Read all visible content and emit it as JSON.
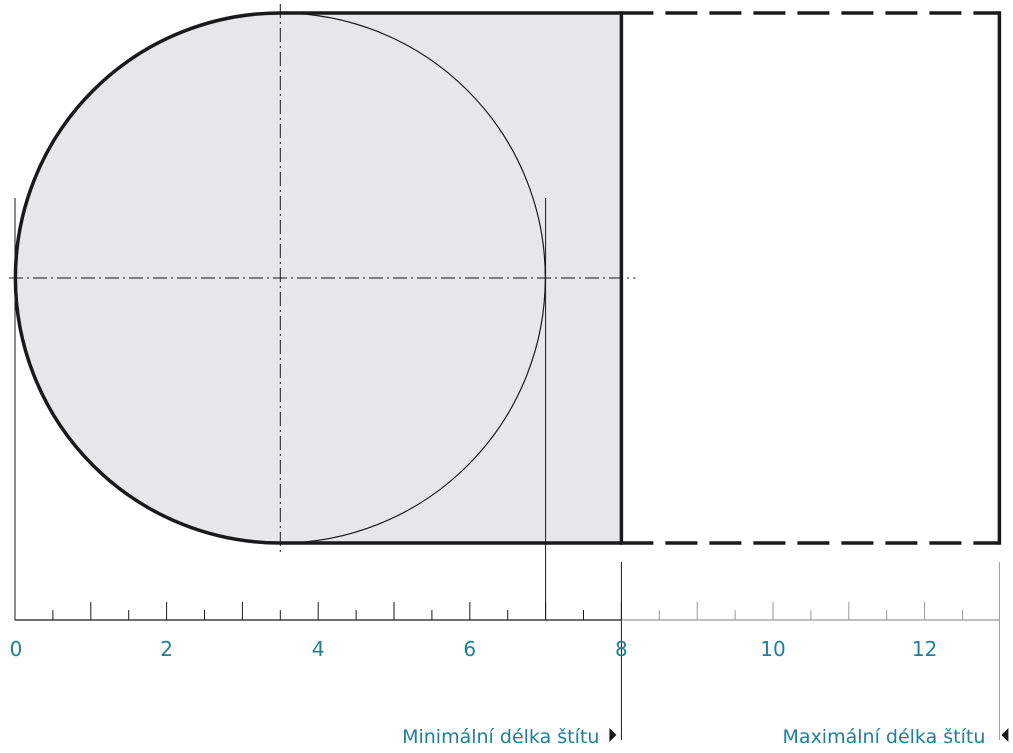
{
  "scale": {
    "min": 0,
    "max": 13,
    "labels": [
      {
        "value": 0,
        "text": "0"
      },
      {
        "value": 2,
        "text": "2"
      },
      {
        "value": 4,
        "text": "4"
      },
      {
        "value": 6,
        "text": "6"
      },
      {
        "value": 8,
        "text": "8"
      },
      {
        "value": 10,
        "text": "10"
      },
      {
        "value": 12,
        "text": "12"
      }
    ],
    "major_ticks": [
      1,
      2,
      3,
      4,
      5,
      6,
      7,
      8,
      9,
      10,
      11,
      12
    ],
    "active_until": 8
  },
  "shield": {
    "circle_center": 3.5,
    "circle_radius": 3.5,
    "min_length": 8,
    "max_length": 13
  },
  "labels": {
    "min_length": "Minimální délka štítu",
    "max_length": "Maximální délka štítu"
  },
  "colors": {
    "fill": "#e6e7e9",
    "outline": "#1a1a1a",
    "text": "#1f7f99",
    "grey_ticks": "#9a9a9a"
  }
}
